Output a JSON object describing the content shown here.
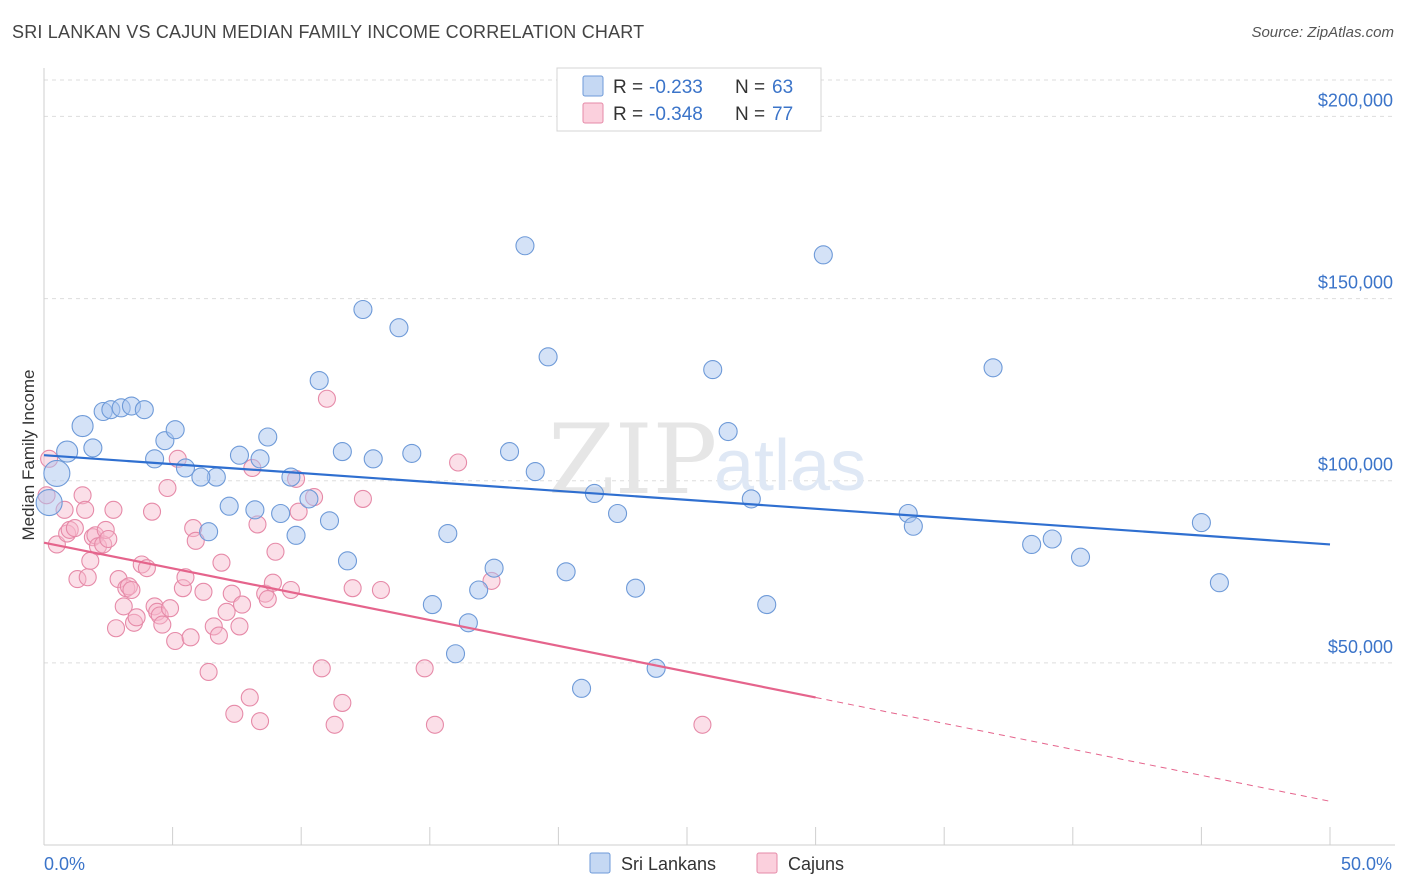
{
  "title": "SRI LANKAN VS CAJUN MEDIAN FAMILY INCOME CORRELATION CHART",
  "source": "Source: ZipAtlas.com",
  "watermark": {
    "zip": "ZIP",
    "atlas": "atlas"
  },
  "colors": {
    "sri_fill": "#a9c6ef",
    "sri_stroke": "#6e9ad8",
    "sri_line": "#2f6fd0",
    "cajun_fill": "#f6b8cb",
    "cajun_stroke": "#e68aa8",
    "cajun_line": "#e5648c",
    "grid": "#dddddd",
    "axis_label": "#3b74c9"
  },
  "legend": {
    "rows": [
      {
        "r_label": "R =",
        "r_value": "-0.233",
        "n_label": "N =",
        "n_value": "63"
      },
      {
        "r_label": "R =",
        "r_value": "-0.348",
        "n_label": "N =",
        "n_value": "77"
      }
    ]
  },
  "chart_data": {
    "type": "scatter",
    "ylabel": "Median Family Income",
    "xlim": [
      0,
      50
    ],
    "ylim": [
      0,
      210000
    ],
    "x_tick_labels": [
      "0.0%",
      "50.0%"
    ],
    "y_ticks": [
      {
        "value": 50000,
        "label": "$50,000"
      },
      {
        "value": 100000,
        "label": "$100,000"
      },
      {
        "value": 150000,
        "label": "$150,000"
      },
      {
        "value": 200000,
        "label": "$200,000"
      }
    ],
    "grid": true,
    "legend_position": "top-center",
    "series": [
      {
        "name": "Sri Lankans",
        "trend": {
          "x": [
            0,
            50
          ],
          "y": [
            107000,
            82500
          ]
        },
        "points": [
          [
            0.2,
            94000
          ],
          [
            0.5,
            102000
          ],
          [
            0.9,
            108000
          ],
          [
            1.5,
            115000
          ],
          [
            1.9,
            109000
          ],
          [
            2.3,
            119000
          ],
          [
            2.6,
            119500
          ],
          [
            3.0,
            120000
          ],
          [
            3.4,
            120500
          ],
          [
            3.9,
            119500
          ],
          [
            4.3,
            106000
          ],
          [
            4.7,
            111000
          ],
          [
            5.1,
            114000
          ],
          [
            5.5,
            103500
          ],
          [
            6.4,
            86000
          ],
          [
            6.7,
            101000
          ],
          [
            6.1,
            101000
          ],
          [
            7.2,
            93000
          ],
          [
            7.6,
            107000
          ],
          [
            8.2,
            92000
          ],
          [
            8.4,
            106000
          ],
          [
            8.7,
            112000
          ],
          [
            9.2,
            91000
          ],
          [
            9.6,
            101000
          ],
          [
            9.8,
            85000
          ],
          [
            10.3,
            95000
          ],
          [
            10.7,
            127500
          ],
          [
            11.1,
            89000
          ],
          [
            11.6,
            108000
          ],
          [
            11.8,
            78000
          ],
          [
            12.4,
            147000
          ],
          [
            12.8,
            106000
          ],
          [
            13.8,
            142000
          ],
          [
            14.3,
            107500
          ],
          [
            15.1,
            66000
          ],
          [
            15.7,
            85500
          ],
          [
            16.0,
            52500
          ],
          [
            16.5,
            61000
          ],
          [
            16.9,
            70000
          ],
          [
            17.5,
            76000
          ],
          [
            18.1,
            108000
          ],
          [
            18.7,
            164500
          ],
          [
            19.1,
            102500
          ],
          [
            19.6,
            134000
          ],
          [
            20.3,
            75000
          ],
          [
            20.9,
            43000
          ],
          [
            21.4,
            96500
          ],
          [
            22.3,
            91000
          ],
          [
            23.0,
            70500
          ],
          [
            23.8,
            48500
          ],
          [
            26.0,
            130500
          ],
          [
            26.6,
            113500
          ],
          [
            27.5,
            95000
          ],
          [
            28.1,
            66000
          ],
          [
            30.3,
            162000
          ],
          [
            33.6,
            91000
          ],
          [
            33.8,
            87500
          ],
          [
            36.9,
            131000
          ],
          [
            38.4,
            82500
          ],
          [
            39.2,
            84000
          ],
          [
            40.3,
            79000
          ],
          [
            45.0,
            88500
          ],
          [
            45.7,
            72000
          ]
        ]
      },
      {
        "name": "Cajuns",
        "trend": {
          "x": [
            0,
            30
          ],
          "y": [
            83000,
            40500
          ]
        },
        "trend_dashed": {
          "x": [
            30,
            50
          ],
          "y": [
            40500,
            12000
          ]
        },
        "points": [
          [
            0.1,
            96000
          ],
          [
            0.2,
            106000
          ],
          [
            0.5,
            82500
          ],
          [
            0.8,
            92000
          ],
          [
            0.9,
            85500
          ],
          [
            1.0,
            86500
          ],
          [
            1.2,
            87000
          ],
          [
            1.3,
            73000
          ],
          [
            1.5,
            96000
          ],
          [
            1.6,
            92000
          ],
          [
            1.7,
            73500
          ],
          [
            1.8,
            78000
          ],
          [
            1.9,
            84500
          ],
          [
            2.0,
            85000
          ],
          [
            2.1,
            82000
          ],
          [
            2.3,
            82500
          ],
          [
            2.4,
            86500
          ],
          [
            2.5,
            84000
          ],
          [
            2.7,
            92000
          ],
          [
            2.8,
            59500
          ],
          [
            2.9,
            73000
          ],
          [
            3.1,
            65500
          ],
          [
            3.2,
            70500
          ],
          [
            3.3,
            71000
          ],
          [
            3.4,
            70000
          ],
          [
            3.5,
            61000
          ],
          [
            3.6,
            62500
          ],
          [
            3.8,
            77000
          ],
          [
            4.0,
            76000
          ],
          [
            4.2,
            91500
          ],
          [
            4.3,
            65500
          ],
          [
            4.4,
            64000
          ],
          [
            4.5,
            63000
          ],
          [
            4.6,
            60500
          ],
          [
            4.8,
            98000
          ],
          [
            4.9,
            65000
          ],
          [
            5.1,
            56000
          ],
          [
            5.2,
            106000
          ],
          [
            5.4,
            70500
          ],
          [
            5.5,
            73500
          ],
          [
            5.7,
            57000
          ],
          [
            5.8,
            87000
          ],
          [
            5.9,
            83500
          ],
          [
            6.2,
            69500
          ],
          [
            6.4,
            47500
          ],
          [
            6.6,
            60000
          ],
          [
            6.8,
            57500
          ],
          [
            6.9,
            77500
          ],
          [
            7.1,
            64000
          ],
          [
            7.3,
            69000
          ],
          [
            7.4,
            36000
          ],
          [
            7.6,
            60000
          ],
          [
            7.7,
            66000
          ],
          [
            8.0,
            40500
          ],
          [
            8.1,
            103500
          ],
          [
            8.3,
            88000
          ],
          [
            8.4,
            34000
          ],
          [
            8.6,
            69000
          ],
          [
            8.7,
            67500
          ],
          [
            8.9,
            72000
          ],
          [
            9.0,
            80500
          ],
          [
            9.6,
            70000
          ],
          [
            9.8,
            100500
          ],
          [
            9.9,
            91500
          ],
          [
            10.5,
            95500
          ],
          [
            10.8,
            48500
          ],
          [
            11.0,
            122500
          ],
          [
            11.3,
            33000
          ],
          [
            11.6,
            39000
          ],
          [
            12.0,
            70500
          ],
          [
            12.4,
            95000
          ],
          [
            13.1,
            70000
          ],
          [
            14.8,
            48500
          ],
          [
            15.2,
            33000
          ],
          [
            16.1,
            105000
          ],
          [
            17.4,
            72500
          ],
          [
            25.6,
            33000
          ]
        ]
      }
    ]
  },
  "bottom_legend": [
    "Sri Lankans",
    "Cajuns"
  ]
}
